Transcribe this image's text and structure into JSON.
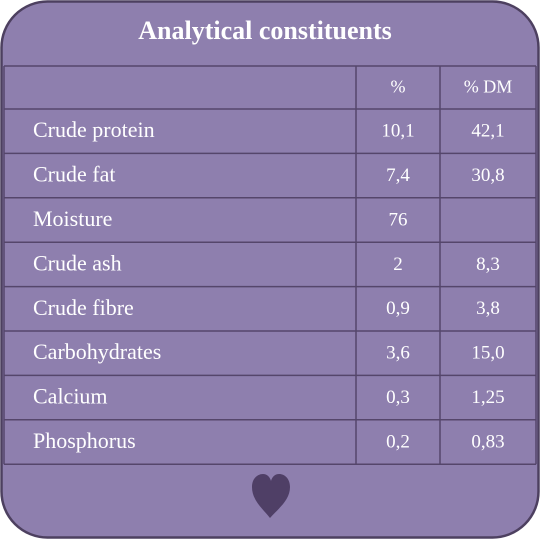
{
  "title": "Analytical constituents",
  "table": {
    "header": [
      "%",
      "% DM"
    ],
    "rows": [
      [
        "Crude protein",
        "10,1",
        "42,1"
      ],
      [
        "Crude fat",
        "7,4",
        "30,8"
      ],
      [
        "Moisture",
        "76"
      ],
      [
        "Crude ash",
        "2",
        "8,3"
      ],
      [
        "Crude fibre",
        "0,9",
        "3,8"
      ],
      [
        "Carbohydrates",
        "3,6",
        "15,0"
      ],
      [
        "Calcium",
        "0,3",
        "1,25"
      ],
      [
        "Phosphorus",
        "0,2",
        "0,83"
      ]
    ]
  }
}
